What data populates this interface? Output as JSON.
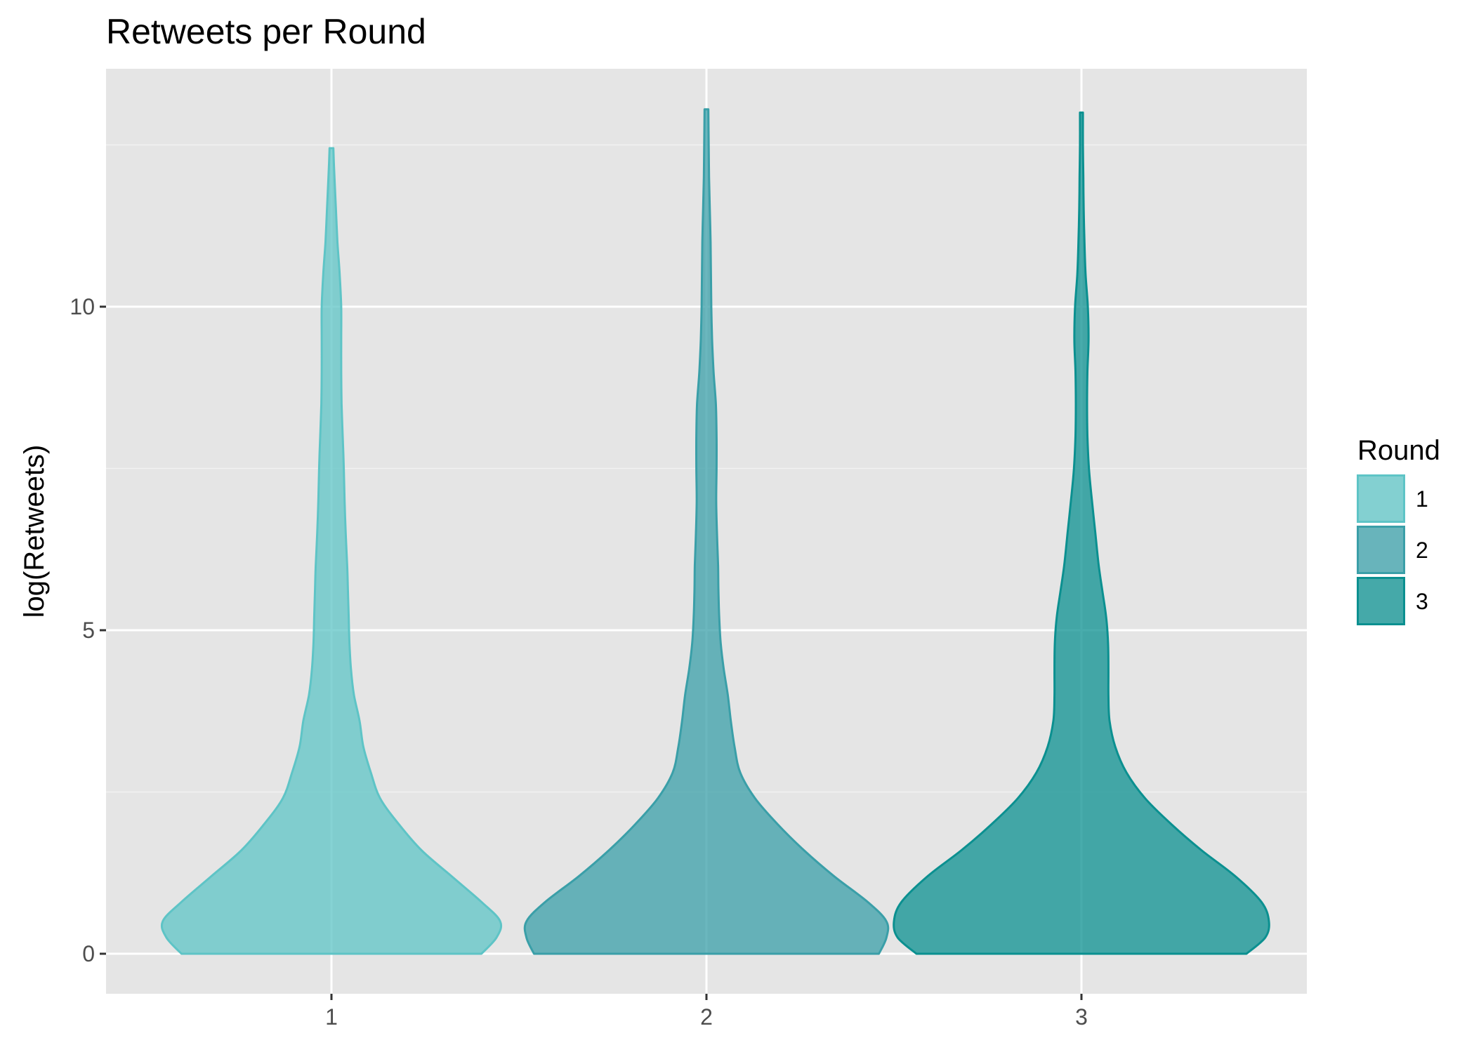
{
  "chart_data": {
    "type": "violin",
    "title": "Retweets per Round",
    "xlabel": "",
    "ylabel": "log(Retweets)",
    "categories": [
      "1",
      "2",
      "3"
    ],
    "y_ticks": [
      0,
      5,
      10
    ],
    "ylim": [
      -0.6,
      13.6
    ],
    "grid": true,
    "legend": {
      "title": "Round",
      "position": "right",
      "entries": [
        "1",
        "2",
        "3"
      ]
    },
    "colors": {
      "1": "#5ec4c6",
      "2": "#3a9fa8",
      "3": "#0b9090"
    },
    "series": [
      {
        "name": "1",
        "y_max": 12.45,
        "profile": [
          [
            0,
            0.4
          ],
          [
            0.25,
            0.44
          ],
          [
            0.5,
            0.45
          ],
          [
            0.8,
            0.4
          ],
          [
            1.2,
            0.32
          ],
          [
            1.6,
            0.24
          ],
          [
            2.0,
            0.18
          ],
          [
            2.4,
            0.13
          ],
          [
            2.8,
            0.105
          ],
          [
            3.2,
            0.085
          ],
          [
            3.6,
            0.075
          ],
          [
            4.0,
            0.06
          ],
          [
            4.4,
            0.052
          ],
          [
            4.8,
            0.048
          ],
          [
            5.2,
            0.046
          ],
          [
            5.6,
            0.044
          ],
          [
            6.0,
            0.042
          ],
          [
            6.5,
            0.038
          ],
          [
            7.0,
            0.035
          ],
          [
            7.5,
            0.033
          ],
          [
            8.0,
            0.03
          ],
          [
            8.5,
            0.027
          ],
          [
            9.0,
            0.026
          ],
          [
            9.5,
            0.026
          ],
          [
            10.0,
            0.026
          ],
          [
            10.5,
            0.022
          ],
          [
            11.0,
            0.016
          ],
          [
            11.5,
            0.012
          ],
          [
            12.0,
            0.008
          ],
          [
            12.45,
            0.005
          ]
        ]
      },
      {
        "name": "2",
        "y_max": 13.05,
        "profile": [
          [
            0,
            0.46
          ],
          [
            0.25,
            0.48
          ],
          [
            0.5,
            0.48
          ],
          [
            0.8,
            0.43
          ],
          [
            1.2,
            0.34
          ],
          [
            1.6,
            0.26
          ],
          [
            2.0,
            0.19
          ],
          [
            2.4,
            0.13
          ],
          [
            2.8,
            0.09
          ],
          [
            3.2,
            0.075
          ],
          [
            3.6,
            0.065
          ],
          [
            4.0,
            0.057
          ],
          [
            4.4,
            0.046
          ],
          [
            4.8,
            0.038
          ],
          [
            5.2,
            0.034
          ],
          [
            5.6,
            0.032
          ],
          [
            6.0,
            0.031
          ],
          [
            6.5,
            0.028
          ],
          [
            7.0,
            0.026
          ],
          [
            7.5,
            0.027
          ],
          [
            8.0,
            0.027
          ],
          [
            8.5,
            0.025
          ],
          [
            9.0,
            0.019
          ],
          [
            9.5,
            0.015
          ],
          [
            10.0,
            0.013
          ],
          [
            10.5,
            0.012
          ],
          [
            11.0,
            0.011
          ],
          [
            11.5,
            0.009
          ],
          [
            12.0,
            0.007
          ],
          [
            12.5,
            0.006
          ],
          [
            13.05,
            0.005
          ]
        ]
      },
      {
        "name": "3",
        "y_max": 13.0,
        "profile": [
          [
            0,
            0.44
          ],
          [
            0.25,
            0.49
          ],
          [
            0.5,
            0.5
          ],
          [
            0.8,
            0.48
          ],
          [
            1.2,
            0.41
          ],
          [
            1.6,
            0.32
          ],
          [
            2.0,
            0.24
          ],
          [
            2.4,
            0.17
          ],
          [
            2.8,
            0.12
          ],
          [
            3.2,
            0.09
          ],
          [
            3.6,
            0.075
          ],
          [
            4.0,
            0.072
          ],
          [
            4.4,
            0.072
          ],
          [
            4.8,
            0.071
          ],
          [
            5.2,
            0.066
          ],
          [
            5.6,
            0.056
          ],
          [
            6.0,
            0.046
          ],
          [
            6.5,
            0.037
          ],
          [
            7.0,
            0.028
          ],
          [
            7.5,
            0.02
          ],
          [
            8.0,
            0.016
          ],
          [
            8.5,
            0.015
          ],
          [
            9.0,
            0.016
          ],
          [
            9.5,
            0.019
          ],
          [
            10.0,
            0.017
          ],
          [
            10.5,
            0.011
          ],
          [
            11.0,
            0.008
          ],
          [
            11.5,
            0.006
          ],
          [
            12.0,
            0.005
          ],
          [
            12.5,
            0.004
          ],
          [
            13.0,
            0.004
          ]
        ]
      }
    ]
  }
}
